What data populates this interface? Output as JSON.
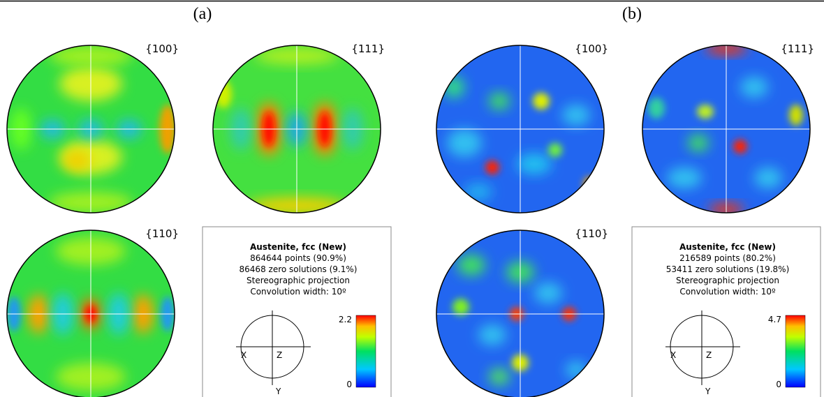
{
  "panels": [
    {
      "label": "(a)",
      "pole_figures": [
        {
          "label": "{100}"
        },
        {
          "label": "{111}"
        },
        {
          "label": "{110}"
        }
      ],
      "info": {
        "title": "Austenite, fcc (New)",
        "lines": [
          "864644 points  (90.9%)",
          "86468 zero solutions (9.1%)",
          "Stereographic projection",
          "Convolution width: 10º"
        ]
      },
      "projection_axes": {
        "x": "X",
        "z": "Z",
        "y": "Y"
      },
      "colorbar": {
        "max": "2.2",
        "min": "0"
      }
    },
    {
      "label": "(b)",
      "pole_figures": [
        {
          "label": "{100}"
        },
        {
          "label": "{111}"
        },
        {
          "label": "{110}"
        }
      ],
      "info": {
        "title": "Austenite, fcc (New)",
        "lines": [
          "216589 points  (80.2%)",
          "53411 zero solutions (19.8%)",
          "Stereographic projection",
          "Convolution width: 10º"
        ]
      },
      "projection_axes": {
        "x": "X",
        "z": "Z",
        "y": "Y"
      },
      "colorbar": {
        "max": "4.7",
        "min": "0"
      }
    }
  ]
}
